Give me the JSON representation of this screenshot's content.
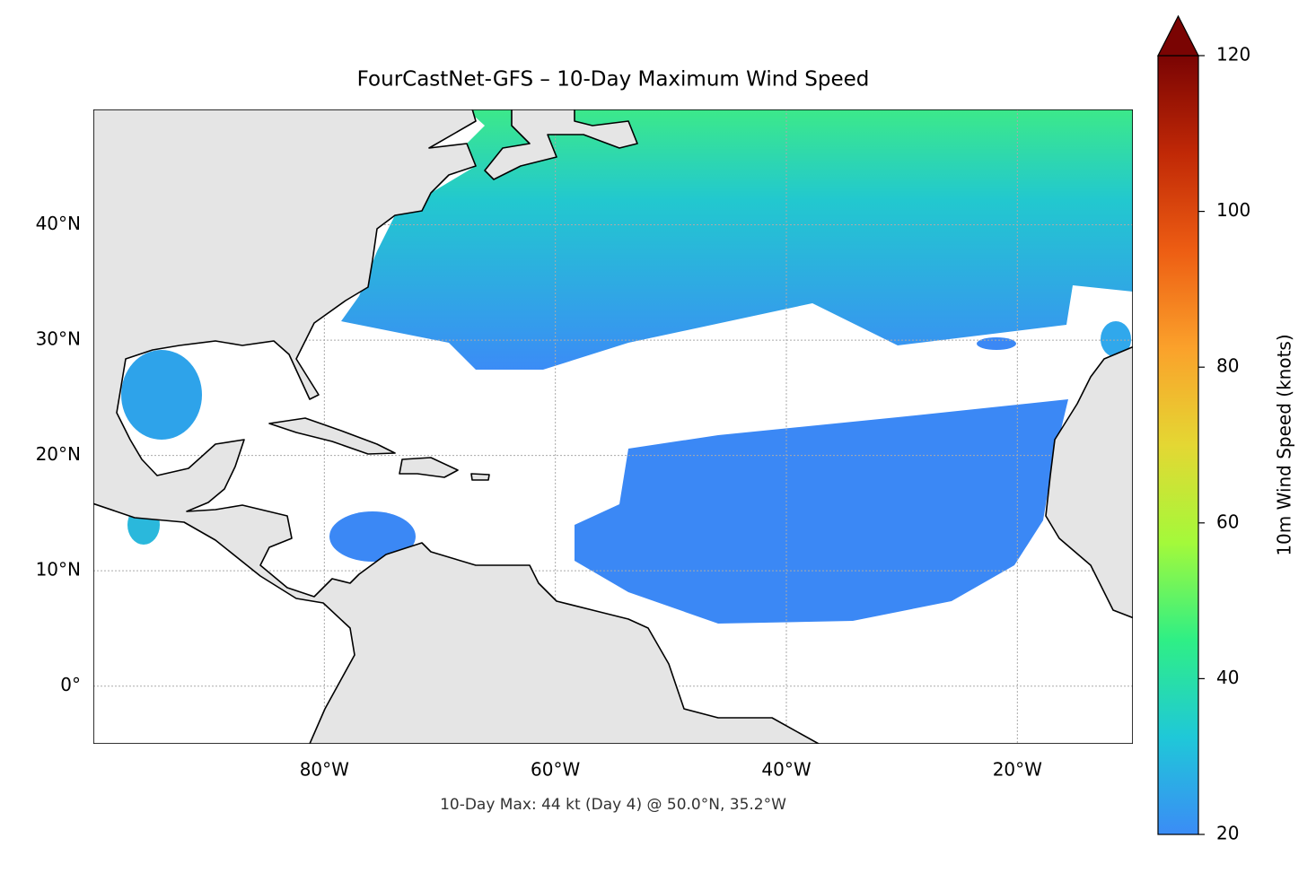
{
  "chart_data": {
    "type": "map",
    "title": "FourCastNet-GFS – 10-Day Maximum Wind Speed",
    "annotation": "10-Day Max: 44 kt (Day 4) @ 50.0°N, 35.2°W",
    "xlim": [
      -100,
      -10
    ],
    "ylim": [
      -5,
      50
    ],
    "xticks": [
      {
        "value": -80,
        "label": "80°W"
      },
      {
        "value": -60,
        "label": "60°W"
      },
      {
        "value": -40,
        "label": "40°W"
      },
      {
        "value": -20,
        "label": "20°W"
      }
    ],
    "yticks": [
      {
        "value": 0,
        "label": "0°"
      },
      {
        "value": 10,
        "label": "10°N"
      },
      {
        "value": 20,
        "label": "20°N"
      },
      {
        "value": 30,
        "label": "30°N"
      },
      {
        "value": 40,
        "label": "40°N"
      }
    ],
    "grid": true,
    "colorbar": {
      "label": "10m Wind Speed (knots)",
      "lim": [
        20,
        120
      ],
      "ticks": [
        20,
        40,
        60,
        80,
        100,
        120
      ],
      "extend": "max",
      "colors": [
        "#3b8cf6",
        "#1fc8d8",
        "#2fef85",
        "#a4f93a",
        "#e4d733",
        "#fba12b",
        "#ed5d13",
        "#c02806",
        "#7a0403"
      ]
    }
  }
}
